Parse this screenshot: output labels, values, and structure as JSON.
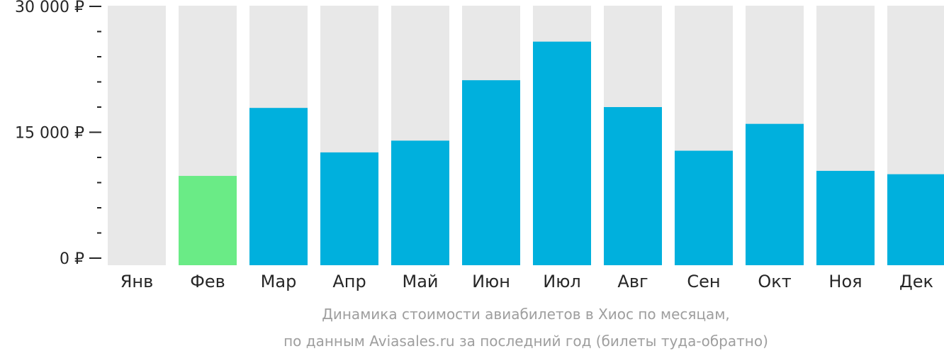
{
  "chart_data": {
    "type": "bar",
    "categories": [
      "Янв",
      "Фев",
      "Мар",
      "Апр",
      "Май",
      "Июн",
      "Июл",
      "Авг",
      "Сен",
      "Окт",
      "Ноя",
      "Дек"
    ],
    "values": [
      0,
      9800,
      17900,
      12600,
      14000,
      21200,
      25800,
      18000,
      12800,
      16000,
      10400,
      10000
    ],
    "highlight_category": "Фев",
    "ylim": [
      0,
      30000
    ],
    "yticks": [
      {
        "value": 0,
        "label": "0 ₽"
      },
      {
        "value": 15000,
        "label": "15 000 ₽"
      },
      {
        "value": 30000,
        "label": "30 000 ₽"
      }
    ],
    "minor_ticks": 4,
    "caption": [
      "Динамика стоимости авиабилетов в Хиос по месяцам,",
      "по данным Aviasales.ru за последний год (билеты туда-обратно)"
    ],
    "colors": {
      "bar": "#00b0dd",
      "highlight": "#6aeb86",
      "background_bar": "#e8e8e8",
      "tick": "#262626",
      "caption": "#9e9e9e"
    }
  }
}
